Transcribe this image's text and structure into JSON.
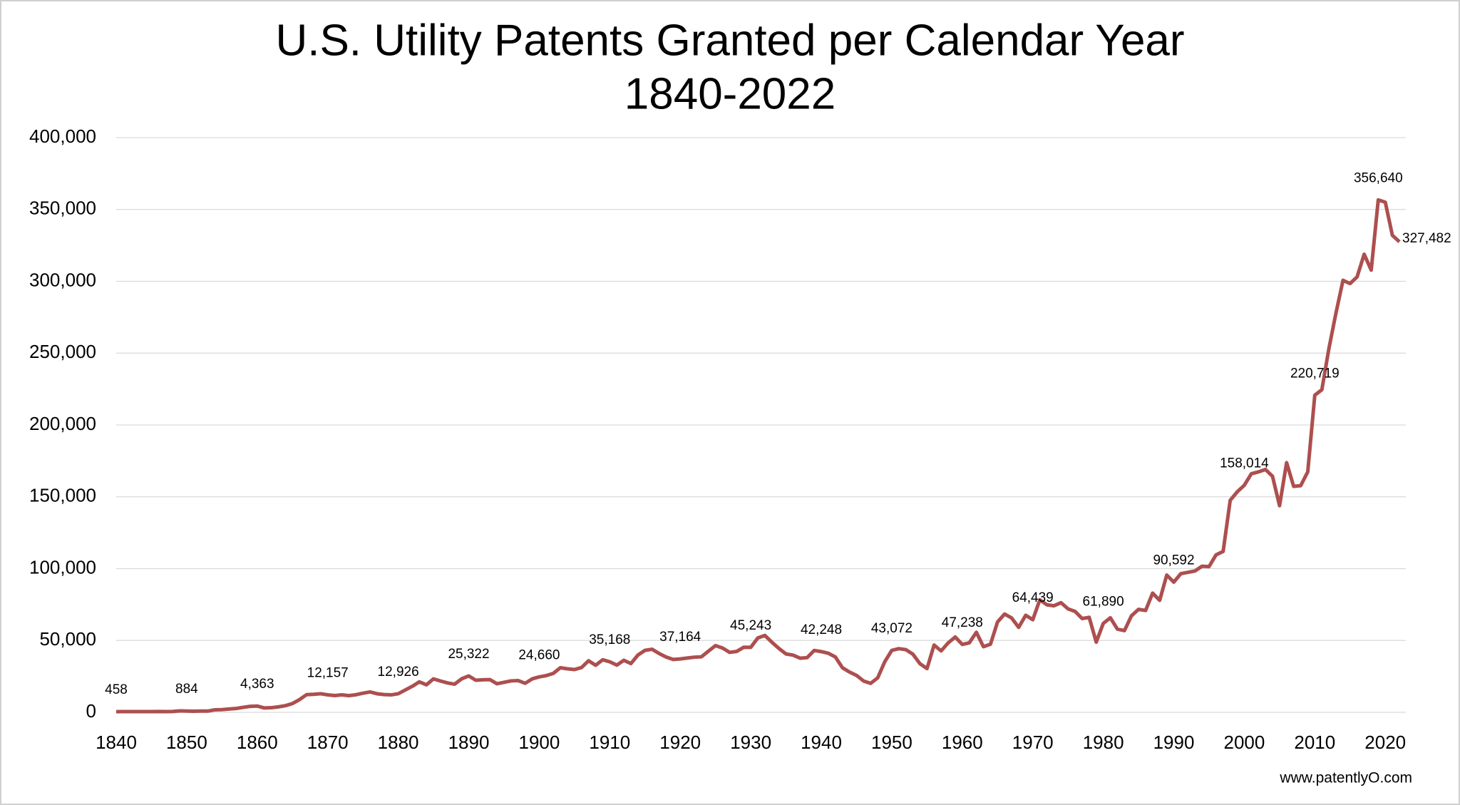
{
  "chart_data": {
    "type": "line",
    "title": "U.S. Utility Patents Granted per Calendar Year",
    "subtitle": "1840-2022",
    "source": "www.patentlyO.com",
    "x": [
      1840,
      1841,
      1842,
      1843,
      1844,
      1845,
      1846,
      1847,
      1848,
      1849,
      1850,
      1851,
      1852,
      1853,
      1854,
      1855,
      1856,
      1857,
      1858,
      1859,
      1860,
      1861,
      1862,
      1863,
      1864,
      1865,
      1866,
      1867,
      1868,
      1869,
      1870,
      1871,
      1872,
      1873,
      1874,
      1875,
      1876,
      1877,
      1878,
      1879,
      1880,
      1881,
      1882,
      1883,
      1884,
      1885,
      1886,
      1887,
      1888,
      1889,
      1890,
      1891,
      1892,
      1893,
      1894,
      1895,
      1896,
      1897,
      1898,
      1899,
      1900,
      1901,
      1902,
      1903,
      1904,
      1905,
      1906,
      1907,
      1908,
      1909,
      1910,
      1911,
      1912,
      1913,
      1914,
      1915,
      1916,
      1917,
      1918,
      1919,
      1920,
      1921,
      1922,
      1923,
      1924,
      1925,
      1926,
      1927,
      1928,
      1929,
      1930,
      1931,
      1932,
      1933,
      1934,
      1935,
      1936,
      1937,
      1938,
      1939,
      1940,
      1941,
      1942,
      1943,
      1944,
      1945,
      1946,
      1947,
      1948,
      1949,
      1950,
      1951,
      1952,
      1953,
      1954,
      1955,
      1956,
      1957,
      1958,
      1959,
      1960,
      1961,
      1962,
      1963,
      1964,
      1965,
      1966,
      1967,
      1968,
      1969,
      1970,
      1971,
      1972,
      1973,
      1974,
      1975,
      1976,
      1977,
      1978,
      1979,
      1980,
      1981,
      1982,
      1983,
      1984,
      1985,
      1986,
      1987,
      1988,
      1989,
      1990,
      1991,
      1992,
      1993,
      1994,
      1995,
      1996,
      1997,
      1998,
      1999,
      2000,
      2001,
      2002,
      2003,
      2004,
      2005,
      2006,
      2007,
      2008,
      2009,
      2010,
      2011,
      2012,
      2013,
      2014,
      2015,
      2016,
      2017,
      2018,
      2019,
      2020,
      2021,
      2022
    ],
    "series": [
      {
        "color": "#ad4f4f",
        "values": [
          458,
          490,
          488,
          493,
          478,
          473,
          566,
          495,
          583,
          984,
          884,
          752,
          885,
          844,
          1755,
          1881,
          2302,
          2674,
          3455,
          4160,
          4363,
          3020,
          3214,
          3773,
          4630,
          6088,
          8863,
          12277,
          12526,
          12931,
          12157,
          11687,
          12180,
          11616,
          12230,
          13291,
          14169,
          12920,
          12345,
          12133,
          12926,
          15548,
          18135,
          21196,
          19147,
          23285,
          21767,
          20429,
          19585,
          23324,
          25322,
          22328,
          22661,
          22768,
          19875,
          20856,
          21864,
          22098,
          20188,
          23278,
          24660,
          25546,
          27119,
          31029,
          30258,
          29775,
          31170,
          35859,
          32757,
          36561,
          35168,
          32856,
          36198,
          33917,
          39892,
          43118,
          43892,
          40935,
          38452,
          36797,
          37164,
          37798,
          38369,
          38616,
          42574,
          46432,
          44733,
          41717,
          42357,
          45267,
          45243,
          51756,
          53504,
          48774,
          44420,
          40618,
          39782,
          37683,
          38061,
          43073,
          42248,
          41109,
          38514,
          31054,
          28053,
          25695,
          21803,
          20139,
          23963,
          35131,
          43072,
          44326,
          43616,
          40468,
          33809,
          30432,
          46817,
          42744,
          48330,
          52408,
          47238,
          48368,
          55691,
          45679,
          47376,
          62857,
          68406,
          65652,
          59104,
          67559,
          64439,
          78317,
          74810,
          74143,
          76278,
          72000,
          70226,
          65269,
          66102,
          48854,
          61890,
          65771,
          57888,
          56860,
          67200,
          71661,
          70860,
          82952,
          77924,
          95537,
          90592,
          96511,
          97444,
          98342,
          101676,
          101419,
          109645,
          111984,
          147517,
          153485,
          158014,
          166035,
          167331,
          169023,
          164290,
          143806,
          173772,
          157282,
          157772,
          167349,
          220719,
          224505,
          253155,
          277835,
          300678,
          298407,
          303049,
          318829,
          307759,
          356640,
          355000,
          332000,
          327482
        ],
        "value_labels": [
          "458",
          null,
          null,
          null,
          null,
          null,
          null,
          null,
          null,
          null,
          "884",
          null,
          null,
          null,
          null,
          null,
          null,
          null,
          null,
          null,
          "4,363",
          null,
          null,
          null,
          null,
          null,
          null,
          null,
          null,
          null,
          "12,157",
          null,
          null,
          null,
          null,
          null,
          null,
          null,
          null,
          null,
          "12,926",
          null,
          null,
          null,
          null,
          null,
          null,
          null,
          null,
          null,
          "25,322",
          null,
          null,
          null,
          null,
          null,
          null,
          null,
          null,
          null,
          "24,660",
          null,
          null,
          null,
          null,
          null,
          null,
          null,
          null,
          null,
          "35,168",
          null,
          null,
          null,
          null,
          null,
          null,
          null,
          null,
          null,
          "37,164",
          null,
          null,
          null,
          null,
          null,
          null,
          null,
          null,
          null,
          "45,243",
          null,
          null,
          null,
          null,
          null,
          null,
          null,
          null,
          null,
          "42,248",
          null,
          null,
          null,
          null,
          null,
          null,
          null,
          null,
          null,
          "43,072",
          null,
          null,
          null,
          null,
          null,
          null,
          null,
          null,
          null,
          "47,238",
          null,
          null,
          null,
          null,
          null,
          null,
          null,
          null,
          null,
          "64,439",
          null,
          null,
          null,
          null,
          null,
          null,
          null,
          null,
          null,
          "61,890",
          null,
          null,
          null,
          null,
          null,
          null,
          null,
          null,
          null,
          "90,592",
          null,
          null,
          null,
          null,
          null,
          null,
          null,
          null,
          null,
          "158,014",
          null,
          null,
          null,
          null,
          null,
          null,
          null,
          null,
          null,
          "220,719",
          null,
          null,
          null,
          null,
          null,
          null,
          null,
          null,
          "356,640",
          null,
          null,
          "327,482"
        ]
      }
    ],
    "xlim": [
      1840,
      2022
    ],
    "xticks": [
      1840,
      1850,
      1860,
      1870,
      1880,
      1890,
      1900,
      1910,
      1920,
      1930,
      1940,
      1950,
      1960,
      1970,
      1980,
      1990,
      2000,
      2010,
      2020
    ],
    "ylim": [
      0,
      400000
    ],
    "yticks": [
      0,
      {
        "value": 50000,
        "label": "50,000"
      },
      {
        "value": 100000,
        "label": "100,000"
      },
      {
        "value": 150000,
        "label": "150,000"
      },
      {
        "value": 200000,
        "label": "200,000"
      },
      {
        "value": 250000,
        "label": "250,000"
      },
      {
        "value": 300000,
        "label": "300,000"
      },
      {
        "value": 350000,
        "label": "350,000"
      },
      {
        "value": 400000,
        "label": "400,000"
      }
    ],
    "grid": true
  }
}
